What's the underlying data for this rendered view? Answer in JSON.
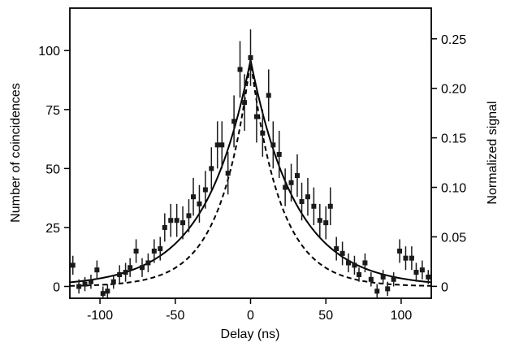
{
  "chart_data": {
    "type": "scatter",
    "xlabel": "Delay (ns)",
    "ylabel": "Number of coincidences",
    "y2label": "Normalized signal",
    "xlim": [
      -120,
      120
    ],
    "ylim": [
      -5,
      118
    ],
    "y2lim": [
      -0.012,
      0.281
    ],
    "grid": false,
    "legend": "none",
    "xticks": [
      -100,
      -50,
      0,
      50,
      100
    ],
    "xtick_labels": [
      "-100",
      "-50",
      "0",
      "50",
      "100"
    ],
    "yticks": [
      0,
      25,
      50,
      75,
      100
    ],
    "ytick_labels": [
      "0",
      "25",
      "50",
      "75",
      "100"
    ],
    "y2ticks": [
      0,
      0.05,
      0.1,
      0.15,
      0.2,
      0.25
    ],
    "y2tick_labels": [
      "0",
      "0.05",
      "0.10",
      "0.15",
      "0.20",
      "0.25"
    ],
    "series": [
      {
        "style": "points-with-error-bars",
        "axis": "left",
        "color": "#1a1a1a",
        "x": [
          -118,
          -114,
          -110,
          -106,
          -102,
          -98,
          -95,
          -91,
          -87,
          -83,
          -80,
          -76,
          -72,
          -68,
          -64,
          -60,
          -57,
          -53,
          -49,
          -45,
          -41,
          -38,
          -34,
          -30,
          -26,
          -22,
          -19,
          -15,
          -11,
          -7,
          -4,
          0,
          4,
          8,
          12,
          15,
          19,
          23,
          27,
          31,
          34,
          38,
          42,
          46,
          50,
          53,
          57,
          61,
          65,
          69,
          72,
          76,
          80,
          84,
          88,
          91,
          95,
          99,
          103,
          107,
          110,
          114,
          118
        ],
        "y": [
          9,
          0,
          1,
          2,
          7,
          -3,
          -2,
          2,
          5,
          6,
          8,
          15,
          8,
          10,
          15,
          16,
          25,
          28,
          28,
          27,
          30,
          38,
          35,
          41,
          50,
          60,
          60,
          48,
          70,
          92,
          78,
          97,
          72,
          65,
          81,
          60,
          56,
          42,
          44,
          47,
          36,
          38,
          34,
          28,
          27,
          34,
          16,
          14,
          10,
          9,
          5,
          10,
          3,
          -2,
          4,
          -1,
          3,
          15,
          12,
          12,
          6,
          7,
          4
        ],
        "yerr": [
          4,
          3,
          3,
          3,
          4,
          3,
          3,
          3,
          4,
          4,
          4,
          5,
          4,
          4,
          5,
          5,
          6,
          7,
          7,
          7,
          7,
          8,
          8,
          8,
          9,
          10,
          10,
          9,
          11,
          12,
          12,
          12,
          11,
          10,
          11,
          10,
          10,
          8,
          8,
          9,
          8,
          8,
          8,
          7,
          7,
          8,
          5,
          5,
          4,
          4,
          3,
          4,
          3,
          3,
          3,
          3,
          3,
          5,
          5,
          5,
          4,
          4,
          3
        ]
      },
      {
        "style": "solid-line",
        "axis": "left",
        "color": "#000000",
        "model": "exp-decay",
        "peak": 96,
        "tau": 30,
        "xrange": [
          -120,
          120
        ]
      },
      {
        "style": "dashed-line",
        "axis": "left",
        "color": "#000000",
        "model": "exp-decay",
        "peak": 96,
        "tau": 20,
        "xrange": [
          -120,
          120
        ]
      }
    ]
  }
}
